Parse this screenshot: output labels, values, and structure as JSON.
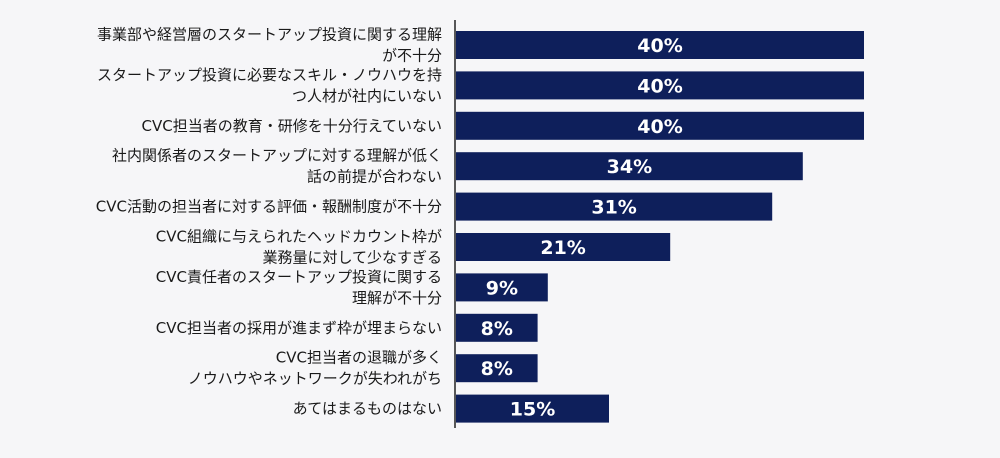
{
  "chart_data": {
    "type": "bar",
    "orientation": "horizontal",
    "categories": [
      [
        "事業部や経営層のスタートアップ投資に関する理解",
        "が不十分"
      ],
      [
        "スタートアップ投資に必要なスキル・ノウハウを持",
        "つ人材が社内にいない"
      ],
      [
        "CVC担当者の教育・研修を十分行えていない"
      ],
      [
        "社内関係者のスタートアップに対する理解が低く",
        "話の前提が合わない"
      ],
      [
        "CVC活動の担当者に対する評価・報酬制度が不十分"
      ],
      [
        "CVC組織に与えられたヘッドカウント枠が",
        "業務量に対して少なすぎる"
      ],
      [
        "CVC責任者のスタートアップ投資に関する",
        "理解が不十分"
      ],
      [
        "CVC担当者の採用が進まず枠が埋まらない"
      ],
      [
        "CVC担当者の退職が多く",
        "ノウハウやネットワークが失われがち"
      ],
      [
        "あてはまるものはない"
      ]
    ],
    "values": [
      40,
      40,
      40,
      34,
      31,
      21,
      9,
      8,
      8,
      15
    ],
    "value_labels": [
      "40%",
      "40%",
      "40%",
      "34%",
      "31%",
      "21%",
      "9%",
      "8%",
      "8%",
      "15%"
    ],
    "unit": "%",
    "xlim": [
      0,
      40
    ],
    "grid": false,
    "legend": "none",
    "colors": {
      "bar": "#0e1f5b",
      "background": "#f6f6f8",
      "axis": "#222222"
    }
  }
}
